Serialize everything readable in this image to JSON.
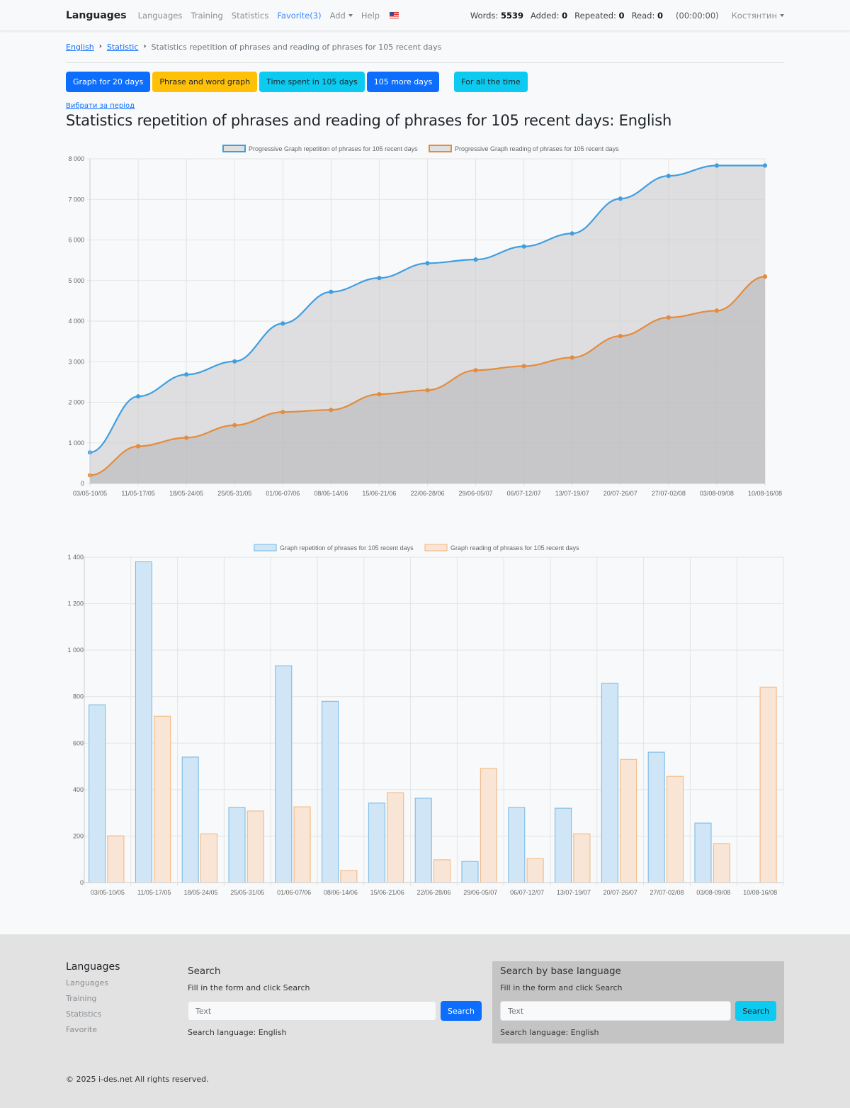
{
  "navbar": {
    "brand": "Languages",
    "links": [
      {
        "label": "Languages",
        "active": false
      },
      {
        "label": "Training",
        "active": false
      },
      {
        "label": "Statistics",
        "active": false
      },
      {
        "label": "Favorite(3)",
        "active": true
      }
    ],
    "add_label": "Add",
    "help_label": "Help",
    "flag_icon": "us-flag-icon",
    "stats": {
      "words_label": "Words:",
      "words": "5539",
      "added_label": "Added:",
      "added": "0",
      "repeated_label": "Repeated:",
      "repeated": "0",
      "read_label": "Read:",
      "read": "0"
    },
    "timer": "(00:00:00)",
    "user": "Костянтин"
  },
  "breadcrumb": {
    "items": [
      "English",
      "Statistic"
    ],
    "current": "Statistics repetition of phrases and reading of phrases for 105 recent days"
  },
  "buttons": [
    {
      "label": "Graph for 20 days",
      "style": "primary"
    },
    {
      "label": "Phrase and word graph",
      "style": "warning"
    },
    {
      "label": "Time spent in 105 days",
      "style": "info"
    },
    {
      "label": "105 more days",
      "style": "primary"
    },
    {
      "label": "For all the time",
      "style": "info"
    }
  ],
  "period_link": "Вибрати за період",
  "page_title": "Statistics repetition of phrases and reading of phrases for 105 recent days: English",
  "colors": {
    "blue": "#3f9fe0",
    "orange": "#e58b3a",
    "bar_blue_fill": "#d0e6f6",
    "bar_blue_stroke": "#73b8e6",
    "bar_orange_fill": "#f9e5d5",
    "bar_orange_stroke": "#f3b47a"
  },
  "chart_data": [
    {
      "type": "area",
      "title": "",
      "categories": [
        "03/05-10/05",
        "11/05-17/05",
        "18/05-24/05",
        "25/05-31/05",
        "01/06-07/06",
        "08/06-14/06",
        "15/06-21/06",
        "22/06-28/06",
        "29/06-05/07",
        "06/07-12/07",
        "13/07-19/07",
        "20/07-26/07",
        "27/07-02/08",
        "03/08-09/08",
        "10/08-16/08"
      ],
      "series": [
        {
          "name": "Progressive Graph repetition of phrases for 105 recent days",
          "values": [
            765,
            2145,
            2685,
            3008,
            3941,
            4721,
            5063,
            5426,
            5517,
            5840,
            6160,
            7017,
            7578,
            7834,
            7834
          ]
        },
        {
          "name": "Progressive Graph reading of phrases for 105 recent days",
          "values": [
            201,
            917,
            1127,
            1435,
            1761,
            1813,
            2200,
            2298,
            2789,
            2892,
            3102,
            3632,
            4089,
            4257,
            5098
          ]
        }
      ],
      "yticks": [
        "0",
        "1 000",
        "2 000",
        "3 000",
        "4 000",
        "5 000",
        "6 000",
        "7 000",
        "8 000"
      ],
      "ylim": [
        0,
        8000
      ],
      "grid": true,
      "legend": "top-center",
      "xlabel": "",
      "ylabel": ""
    },
    {
      "type": "bar",
      "title": "",
      "categories": [
        "03/05-10/05",
        "11/05-17/05",
        "18/05-24/05",
        "25/05-31/05",
        "01/06-07/06",
        "08/06-14/06",
        "15/06-21/06",
        "22/06-28/06",
        "29/06-05/07",
        "06/07-12/07",
        "13/07-19/07",
        "20/07-26/07",
        "27/07-02/08",
        "03/08-09/08",
        "10/08-16/08"
      ],
      "series": [
        {
          "name": "Graph repetition of phrases for 105 recent days",
          "values": [
            765,
            1380,
            540,
            323,
            933,
            780,
            342,
            363,
            91,
            323,
            320,
            857,
            561,
            256,
            0
          ]
        },
        {
          "name": "Graph reading of phrases for 105 recent days",
          "values": [
            201,
            716,
            210,
            308,
            326,
            52,
            387,
            98,
            491,
            103,
            210,
            530,
            457,
            168,
            841
          ]
        }
      ],
      "yticks": [
        "0",
        "200",
        "400",
        "600",
        "800",
        "1 000",
        "1 200",
        "1 400"
      ],
      "ylim": [
        0,
        1400
      ],
      "grid": true,
      "legend": "top-center",
      "xlabel": "",
      "ylabel": ""
    }
  ],
  "footer": {
    "title": "Languages",
    "links": [
      "Languages",
      "Training",
      "Statistics",
      "Favorite"
    ],
    "search": {
      "title": "Search",
      "subtitle": "Fill in the form and click Search",
      "placeholder": "Text",
      "button": "Search",
      "language": "Search language: English"
    },
    "search_base": {
      "title": "Search by base language",
      "subtitle": "Fill in the form and click Search",
      "placeholder": "Text",
      "button": "Search",
      "language": "Search language: English"
    },
    "copyright": "© 2025 i-des.net All rights reserved."
  }
}
